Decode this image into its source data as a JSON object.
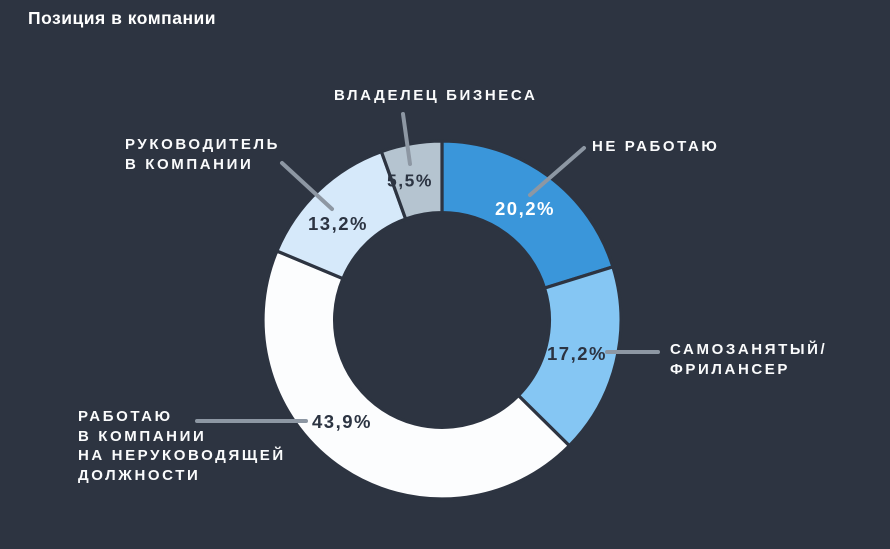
{
  "page": {
    "title": "Позиция в компании",
    "background_color": "#2d3441",
    "title_color": "#ffffff",
    "label_color": "#fafbfc"
  },
  "chart_data": {
    "type": "pie",
    "subtype": "donut",
    "title": "Позиция в компании",
    "units": "%",
    "start_angle_deg": 0,
    "direction": "clockwise",
    "inner_radius_ratio": 0.6,
    "gap_stroke_color": "#2d3441",
    "leader_line_color": "#8d97a3",
    "legend_position": "callout-labels",
    "series": [
      {
        "label": "НЕ РАБОТАЮ",
        "value": 20.2,
        "display": "20,2%",
        "color": "#3a96da",
        "value_color": "#ffffff"
      },
      {
        "label": "САМОЗАНЯТЫЙ/\nФРИЛАНСЕР",
        "value": 17.2,
        "display": "17,2%",
        "color": "#85c6f3",
        "value_color": "#2c3442"
      },
      {
        "label": "РАБОТАЮ\nВ КОМПАНИИ\nНА НЕРУКОВОДЯЩЕЙ\nДОЛЖНОСТИ",
        "value": 43.9,
        "display": "43,9%",
        "color": "#fcfdfe",
        "value_color": "#2c3442"
      },
      {
        "label": "РУКОВОДИТЕЛЬ\nВ КОМПАНИИ",
        "value": 13.2,
        "display": "13,2%",
        "color": "#d6e9fa",
        "value_color": "#2c3442"
      },
      {
        "label": "ВЛАДЕЛЕЦ БИЗНЕСА",
        "value": 5.5,
        "display": "5,5%",
        "color": "#b5c4d0",
        "value_color": "#2c3442"
      }
    ]
  }
}
